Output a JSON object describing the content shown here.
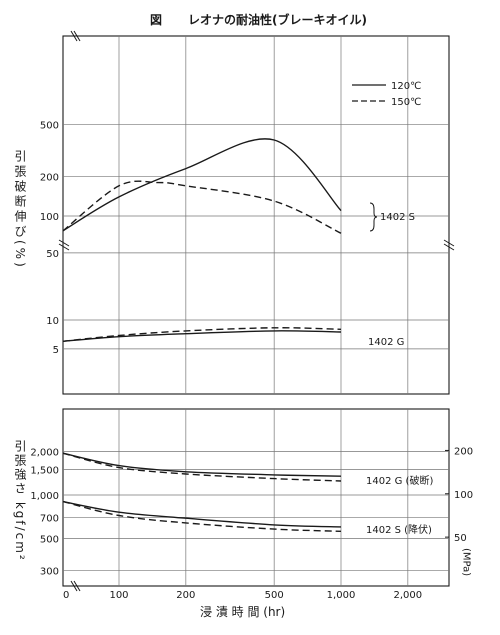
{
  "figure": {
    "label": "図",
    "title": "レオナの耐油性(ブレーキオイル)"
  },
  "legend": {
    "entries": [
      {
        "label": "120℃",
        "style": "solid"
      },
      {
        "label": "150℃",
        "style": "dashed"
      }
    ]
  },
  "top_panel": {
    "ylabel": "引張破断伸び(%)",
    "ytick_labels": [
      "500",
      "200",
      "100",
      "50",
      "10",
      "5"
    ],
    "annotations": [
      "1402 S",
      "1402 G"
    ]
  },
  "bottom_panel": {
    "ylabel_left": "引張強さ kgf/cm²",
    "ylabel_right": "(MPa)",
    "ytick_labels_left": [
      "2,000",
      "1,500",
      "1,000",
      "700",
      "500",
      "300"
    ],
    "ytick_labels_right": [
      "200",
      "100",
      "50"
    ],
    "annotations": [
      "1402 G (破断)",
      "1402 S (降伏)"
    ]
  },
  "xaxis": {
    "label": "浸 漬 時 間 (hr)",
    "tick_labels": [
      "0",
      "100",
      "200",
      "500",
      "1,000",
      "2,000"
    ]
  },
  "colors": {
    "ink": "#1a1a1a",
    "grid": "#777777",
    "paper": "#ffffff"
  },
  "chart_data": [
    {
      "type": "line",
      "title": "",
      "xlabel": "浸漬時間 (hr)",
      "ylabel": "引張破断伸び (%)",
      "x_scale": "log (broken near 0)",
      "y_scale": "log (broken between 50 and 100)",
      "xticks": [
        0,
        100,
        200,
        500,
        1000,
        2000
      ],
      "yticks": [
        5,
        10,
        50,
        100,
        200,
        500
      ],
      "grid": true,
      "legend_position": "top-right",
      "series": [
        {
          "name": "1402 S 120℃",
          "style": "solid",
          "x": [
            0,
            100,
            200,
            500,
            1000
          ],
          "y": [
            85,
            140,
            230,
            380,
            110
          ]
        },
        {
          "name": "1402 S 150℃",
          "style": "dashed",
          "x": [
            0,
            100,
            150,
            200,
            500,
            1000
          ],
          "y": [
            85,
            170,
            180,
            170,
            130,
            80
          ]
        },
        {
          "name": "1402 G 120℃",
          "style": "solid",
          "x": [
            0,
            100,
            200,
            500,
            1000
          ],
          "y": [
            6,
            6.7,
            7.2,
            7.7,
            7.5
          ]
        },
        {
          "name": "1402 G 150℃",
          "style": "dashed",
          "x": [
            0,
            100,
            200,
            500,
            1000
          ],
          "y": [
            6,
            6.9,
            7.7,
            8.3,
            8
          ]
        }
      ]
    },
    {
      "type": "line",
      "title": "",
      "xlabel": "浸漬時間 (hr)",
      "ylabel": "引張強さ (kgf/cm²)",
      "ylabel_secondary": "(MPa)",
      "x_scale": "log (broken near 0)",
      "y_scale": "log",
      "xticks": [
        0,
        100,
        200,
        500,
        1000,
        2000
      ],
      "yticks": [
        300,
        500,
        700,
        1000,
        1500,
        2000
      ],
      "yticks_secondary": [
        50,
        100,
        200
      ],
      "grid": true,
      "series": [
        {
          "name": "1402 G (破断) 120℃",
          "style": "solid",
          "x": [
            0,
            100,
            200,
            500,
            1000
          ],
          "y": [
            1950,
            1600,
            1450,
            1380,
            1350
          ]
        },
        {
          "name": "1402 G (破断) 150℃",
          "style": "dashed",
          "x": [
            0,
            100,
            200,
            500,
            1000
          ],
          "y": [
            1950,
            1550,
            1400,
            1300,
            1250
          ]
        },
        {
          "name": "1402 S (降伏) 120℃",
          "style": "solid",
          "x": [
            0,
            100,
            200,
            500,
            1000
          ],
          "y": [
            900,
            760,
            690,
            620,
            600
          ]
        },
        {
          "name": "1402 S (降伏) 150℃",
          "style": "dashed",
          "x": [
            0,
            100,
            200,
            500,
            1000
          ],
          "y": [
            900,
            720,
            640,
            580,
            560
          ]
        }
      ]
    }
  ]
}
